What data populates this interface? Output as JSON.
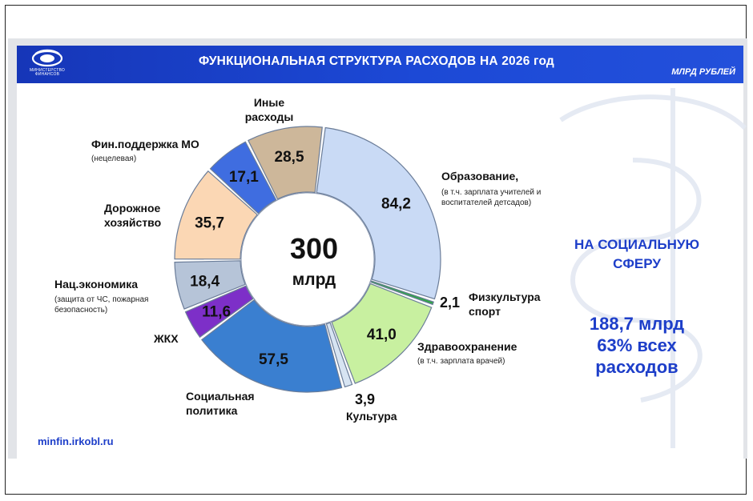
{
  "header": {
    "logo_text_line1": "МИНИСТЕРСТВО",
    "logo_text_line2": "ФИНАНСОВ",
    "title": "ФУНКЦИОНАЛЬНАЯ СТРУКТУРА РАСХОДОВ НА 2026 год",
    "units": "МЛРД РУБЛЕЙ"
  },
  "center": {
    "total": "300",
    "unit": "млрд"
  },
  "labels": {
    "education": "Образование,",
    "education_note": "(в т.ч. зарплата учителей и воспитателей детсадов)",
    "sport_line1": "Физкультура",
    "sport_line2": "спорт",
    "health": "Здравоохранение",
    "health_note": "(в т.ч. зарплата врачей)",
    "culture": "Культура",
    "social_line1": "Социальная",
    "social_line2": "политика",
    "housing": "ЖКХ",
    "natecon": "Нац.экономика",
    "natecon_note_line1": "(защита от ЧС, пожарная",
    "natecon_note_line2": "безопасность)",
    "roads_line1": "Дорожное",
    "roads_line2": "хозяйство",
    "finsupport": "Фин.поддержка МО",
    "finsupport_note": "(нецелевая)",
    "other_line1": "Иные",
    "other_line2": "расходы"
  },
  "social_sphere": {
    "line1": "НА СОЦИАЛЬНУЮ",
    "line2": "СФЕРУ",
    "amount": "188,7 млрд",
    "share_line1": "63% всех",
    "share_line2": "расходов"
  },
  "footer": {
    "url": "minfin.irkobl.ru"
  },
  "chart_data": {
    "type": "pie",
    "donut": true,
    "total": 300,
    "unit": "млрд рублей",
    "slices": [
      {
        "label": "Образование",
        "value": 84.2,
        "display": "84,2",
        "color": "#c9daf5"
      },
      {
        "label": "Физкультура спорт",
        "value": 2.1,
        "display": "2,1",
        "color": "#2fa845"
      },
      {
        "label": "Здравоохранение",
        "value": 41.0,
        "display": "41,0",
        "color": "#c8f0a0"
      },
      {
        "label": "Культура",
        "value": 3.9,
        "display": "3,9",
        "color": "#d7e4f2"
      },
      {
        "label": "Социальная политика",
        "value": 57.5,
        "display": "57,5",
        "color": "#3a7fd0"
      },
      {
        "label": "ЖКХ",
        "value": 11.6,
        "display": "11,6",
        "color": "#7d2fc8"
      },
      {
        "label": "Нац.экономика",
        "value": 18.4,
        "display": "18,4",
        "color": "#b6c4d8"
      },
      {
        "label": "Дорожное хозяйство",
        "value": 35.7,
        "display": "35,7",
        "color": "#fbd7b4"
      },
      {
        "label": "Фин.поддержка МО",
        "value": 17.1,
        "display": "17,1",
        "color": "#3f6de0"
      },
      {
        "label": "Иные расходы",
        "value": 28.5,
        "display": "28,5",
        "color": "#cdb79a"
      }
    ]
  }
}
